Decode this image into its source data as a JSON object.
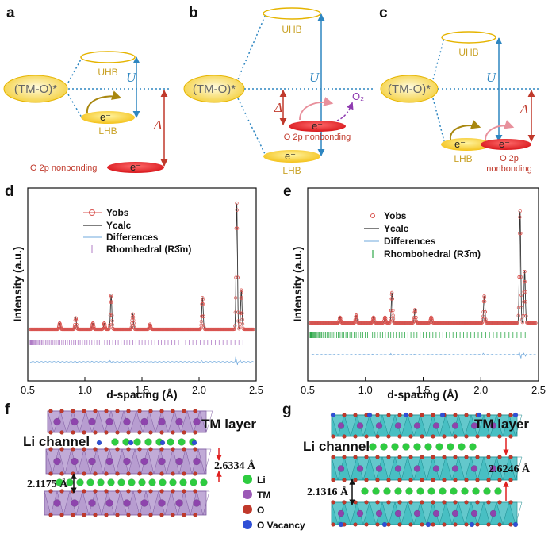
{
  "panels": {
    "a": {
      "label": "a",
      "levels": {
        "uhb": "UHB",
        "lhb": "LHB",
        "tmo": "(TM-O)*",
        "o2p": "O 2p nonbonding",
        "electron": "e⁻",
        "u": "U",
        "delta": "Δ"
      }
    },
    "b": {
      "label": "b",
      "levels": {
        "uhb": "UHB",
        "lhb": "LHB",
        "tmo": "(TM-O)*",
        "o2p": "O 2p nonbonding",
        "electron": "e⁻",
        "u": "U",
        "delta": "Δ",
        "o2": "O₂"
      }
    },
    "c": {
      "label": "c",
      "levels": {
        "uhb": "UHB",
        "lhb": "LHB",
        "tmo": "(TM-O)*",
        "o2p": "O 2p nonbonding",
        "electron": "e⁻",
        "u": "U",
        "delta": "Δ"
      }
    },
    "d": {
      "label": "d"
    },
    "e": {
      "label": "e"
    },
    "f": {
      "label": "f"
    },
    "g": {
      "label": "g"
    }
  },
  "chart_data": [
    {
      "type": "scatter",
      "panel": "d",
      "xlabel": "d-spacing (Å)",
      "ylabel": "Intensity (a.u.)",
      "xlim": [
        0.5,
        2.5
      ],
      "x_ticks": [
        "0.5",
        "1.0",
        "1.5",
        "2.0",
        "2.5"
      ],
      "legend": [
        "Yobs",
        "Ycalc",
        "Differences",
        "Rhomhedral (R3̄m)"
      ],
      "legend_position": "top-left",
      "colors": {
        "yobs": "#d9534f",
        "ycalc": "#333333",
        "diff": "#6fa8dc",
        "ticks": "#b07cc6"
      },
      "peaks": [
        {
          "x": 0.78,
          "h": 0.05
        },
        {
          "x": 0.92,
          "h": 0.09
        },
        {
          "x": 1.07,
          "h": 0.05
        },
        {
          "x": 1.17,
          "h": 0.05
        },
        {
          "x": 1.23,
          "h": 0.27
        },
        {
          "x": 1.42,
          "h": 0.12
        },
        {
          "x": 1.57,
          "h": 0.04
        },
        {
          "x": 2.03,
          "h": 0.25
        },
        {
          "x": 2.33,
          "h": 1.0
        },
        {
          "x": 2.37,
          "h": 0.31
        }
      ]
    },
    {
      "type": "scatter",
      "panel": "e",
      "xlabel": "d-spacing (Å)",
      "ylabel": "Intensity (a.u.)",
      "xlim": [
        0.5,
        2.5
      ],
      "x_ticks": [
        "0.5",
        "1.0",
        "1.5",
        "2.0",
        "2.5"
      ],
      "legend": [
        "Yobs",
        "Ycalc",
        "Differences",
        "Rhombohedral (R3̄m)"
      ],
      "legend_position": "top-left",
      "colors": {
        "yobs": "#d9534f",
        "ycalc": "#333333",
        "diff": "#6fa8dc",
        "ticks": "#2ea84a"
      },
      "peaks": [
        {
          "x": 0.78,
          "h": 0.05
        },
        {
          "x": 0.92,
          "h": 0.07
        },
        {
          "x": 1.07,
          "h": 0.05
        },
        {
          "x": 1.17,
          "h": 0.05
        },
        {
          "x": 1.23,
          "h": 0.27
        },
        {
          "x": 1.43,
          "h": 0.12
        },
        {
          "x": 1.57,
          "h": 0.05
        },
        {
          "x": 2.03,
          "h": 0.24
        },
        {
          "x": 2.34,
          "h": 1.0
        },
        {
          "x": 2.38,
          "h": 0.46
        }
      ]
    }
  ],
  "structures": {
    "f": {
      "tm_layer": "TM layer",
      "li_channel": "Li channel",
      "d_tm": "2.6334 Å",
      "d_li": "2.1175 Å"
    },
    "g": {
      "tm_layer": "TM layer",
      "li_channel": "Li channel",
      "d_tm": "2.6246 Å",
      "d_li": "2.1316 Å"
    },
    "legend": [
      {
        "label": "Li",
        "color": "#2ecc40"
      },
      {
        "label": "TM",
        "color": "#9b59b6"
      },
      {
        "label": "O",
        "color": "#c0392b"
      },
      {
        "label": "O Vacancy",
        "color": "#2f4fd6"
      }
    ]
  }
}
